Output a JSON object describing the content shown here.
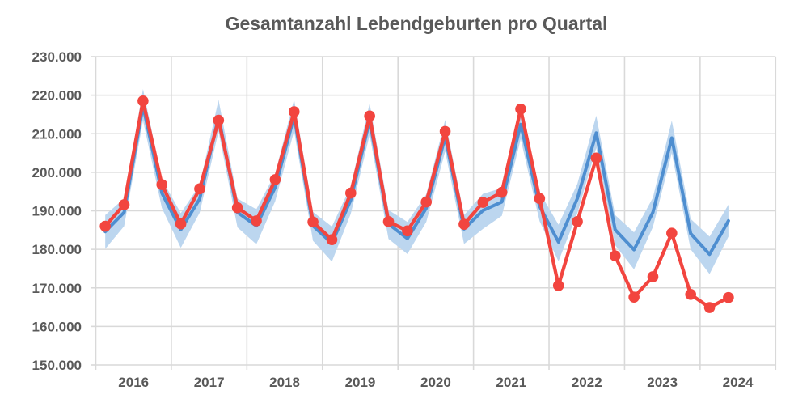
{
  "chart_data": {
    "type": "line",
    "title": "Gesamtanzahl Lebendgeburten pro Quartal",
    "xlabel": "",
    "ylabel": "",
    "ylim": [
      150000,
      230000
    ],
    "ytick_step": 10000,
    "y_tick_values": [
      230000,
      220000,
      210000,
      200000,
      190000,
      180000,
      170000,
      160000,
      150000
    ],
    "y_tick_labels": [
      "230.000",
      "220.000",
      "210.000",
      "200.000",
      "190.000",
      "180.000",
      "170.000",
      "160.000",
      "150.000"
    ],
    "x_year_labels": [
      "2016",
      "2017",
      "2018",
      "2019",
      "2020",
      "2021",
      "2022",
      "2023",
      "2024"
    ],
    "quarters_per_year": 4,
    "grid": true,
    "legend": "none",
    "series": [
      {
        "id": "series-red-actual",
        "style": "line-with-markers",
        "color": "#F2453F",
        "values": [
          186000,
          191600,
          218500,
          196800,
          186600,
          195700,
          213500,
          190800,
          187400,
          198100,
          215700,
          187100,
          182500,
          194600,
          214600,
          187200,
          184800,
          192300,
          210600,
          186500,
          192200,
          194800,
          216400,
          193200,
          170600,
          187200,
          203700,
          178300,
          167600,
          172900,
          184200,
          168300,
          164900,
          167500
        ]
      },
      {
        "id": "series-blue-model",
        "style": "line",
        "color": "#4E8ED0",
        "values": [
          184600,
          189600,
          217200,
          194600,
          185100,
          193100,
          214400,
          189600,
          186100,
          196100,
          214500,
          186100,
          181600,
          192800,
          213500,
          186600,
          182800,
          190700,
          209200,
          185300,
          190100,
          192300,
          212400,
          191200,
          181900,
          193200,
          210200,
          185100,
          179900,
          189600,
          208900,
          184100,
          178700,
          187400
        ]
      }
    ],
    "band": {
      "id": "confidence-band",
      "color": "#BCD6EF",
      "upper": [
        188900,
        193200,
        221600,
        198200,
        189400,
        196700,
        218800,
        193200,
        190400,
        199700,
        218900,
        189700,
        185900,
        196400,
        217900,
        190200,
        187100,
        194300,
        213600,
        188900,
        194400,
        195900,
        216800,
        194800,
        186400,
        197000,
        214700,
        188900,
        184400,
        193400,
        213400,
        187900,
        183300,
        191600
      ],
      "lower": [
        180100,
        186000,
        213400,
        190700,
        180400,
        189500,
        210600,
        185700,
        181300,
        192500,
        210700,
        182200,
        176800,
        189200,
        209700,
        182700,
        178800,
        187100,
        205400,
        181400,
        185300,
        188700,
        208600,
        187300,
        176900,
        189400,
        206300,
        181100,
        174800,
        185800,
        205000,
        180000,
        173600,
        183300
      ]
    },
    "colors": {
      "grid": "#D9D9D9",
      "text": "#595959",
      "background": "#FFFFFF"
    }
  }
}
